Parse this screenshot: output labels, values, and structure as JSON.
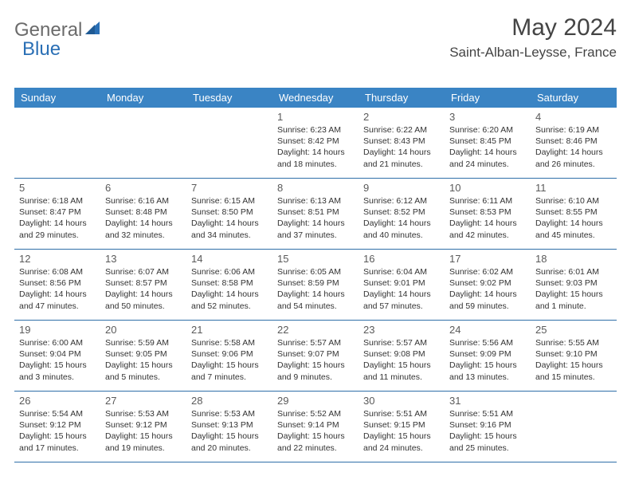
{
  "logo": {
    "text1": "General",
    "text2": "Blue"
  },
  "title": {
    "month": "May 2024",
    "location": "Saint-Alban-Leysse, France"
  },
  "colors": {
    "header_bg": "#3a84c4",
    "header_text": "#ffffff",
    "border": "#2f6fa8",
    "daynum": "#5a5a5a",
    "body_text": "#333333",
    "logo_blue": "#2a6fb5"
  },
  "day_names": [
    "Sunday",
    "Monday",
    "Tuesday",
    "Wednesday",
    "Thursday",
    "Friday",
    "Saturday"
  ],
  "weeks": [
    [
      {
        "n": "",
        "sr": "",
        "ss": "",
        "d1": "",
        "d2": ""
      },
      {
        "n": "",
        "sr": "",
        "ss": "",
        "d1": "",
        "d2": ""
      },
      {
        "n": "",
        "sr": "",
        "ss": "",
        "d1": "",
        "d2": ""
      },
      {
        "n": "1",
        "sr": "Sunrise: 6:23 AM",
        "ss": "Sunset: 8:42 PM",
        "d1": "Daylight: 14 hours",
        "d2": "and 18 minutes."
      },
      {
        "n": "2",
        "sr": "Sunrise: 6:22 AM",
        "ss": "Sunset: 8:43 PM",
        "d1": "Daylight: 14 hours",
        "d2": "and 21 minutes."
      },
      {
        "n": "3",
        "sr": "Sunrise: 6:20 AM",
        "ss": "Sunset: 8:45 PM",
        "d1": "Daylight: 14 hours",
        "d2": "and 24 minutes."
      },
      {
        "n": "4",
        "sr": "Sunrise: 6:19 AM",
        "ss": "Sunset: 8:46 PM",
        "d1": "Daylight: 14 hours",
        "d2": "and 26 minutes."
      }
    ],
    [
      {
        "n": "5",
        "sr": "Sunrise: 6:18 AM",
        "ss": "Sunset: 8:47 PM",
        "d1": "Daylight: 14 hours",
        "d2": "and 29 minutes."
      },
      {
        "n": "6",
        "sr": "Sunrise: 6:16 AM",
        "ss": "Sunset: 8:48 PM",
        "d1": "Daylight: 14 hours",
        "d2": "and 32 minutes."
      },
      {
        "n": "7",
        "sr": "Sunrise: 6:15 AM",
        "ss": "Sunset: 8:50 PM",
        "d1": "Daylight: 14 hours",
        "d2": "and 34 minutes."
      },
      {
        "n": "8",
        "sr": "Sunrise: 6:13 AM",
        "ss": "Sunset: 8:51 PM",
        "d1": "Daylight: 14 hours",
        "d2": "and 37 minutes."
      },
      {
        "n": "9",
        "sr": "Sunrise: 6:12 AM",
        "ss": "Sunset: 8:52 PM",
        "d1": "Daylight: 14 hours",
        "d2": "and 40 minutes."
      },
      {
        "n": "10",
        "sr": "Sunrise: 6:11 AM",
        "ss": "Sunset: 8:53 PM",
        "d1": "Daylight: 14 hours",
        "d2": "and 42 minutes."
      },
      {
        "n": "11",
        "sr": "Sunrise: 6:10 AM",
        "ss": "Sunset: 8:55 PM",
        "d1": "Daylight: 14 hours",
        "d2": "and 45 minutes."
      }
    ],
    [
      {
        "n": "12",
        "sr": "Sunrise: 6:08 AM",
        "ss": "Sunset: 8:56 PM",
        "d1": "Daylight: 14 hours",
        "d2": "and 47 minutes."
      },
      {
        "n": "13",
        "sr": "Sunrise: 6:07 AM",
        "ss": "Sunset: 8:57 PM",
        "d1": "Daylight: 14 hours",
        "d2": "and 50 minutes."
      },
      {
        "n": "14",
        "sr": "Sunrise: 6:06 AM",
        "ss": "Sunset: 8:58 PM",
        "d1": "Daylight: 14 hours",
        "d2": "and 52 minutes."
      },
      {
        "n": "15",
        "sr": "Sunrise: 6:05 AM",
        "ss": "Sunset: 8:59 PM",
        "d1": "Daylight: 14 hours",
        "d2": "and 54 minutes."
      },
      {
        "n": "16",
        "sr": "Sunrise: 6:04 AM",
        "ss": "Sunset: 9:01 PM",
        "d1": "Daylight: 14 hours",
        "d2": "and 57 minutes."
      },
      {
        "n": "17",
        "sr": "Sunrise: 6:02 AM",
        "ss": "Sunset: 9:02 PM",
        "d1": "Daylight: 14 hours",
        "d2": "and 59 minutes."
      },
      {
        "n": "18",
        "sr": "Sunrise: 6:01 AM",
        "ss": "Sunset: 9:03 PM",
        "d1": "Daylight: 15 hours",
        "d2": "and 1 minute."
      }
    ],
    [
      {
        "n": "19",
        "sr": "Sunrise: 6:00 AM",
        "ss": "Sunset: 9:04 PM",
        "d1": "Daylight: 15 hours",
        "d2": "and 3 minutes."
      },
      {
        "n": "20",
        "sr": "Sunrise: 5:59 AM",
        "ss": "Sunset: 9:05 PM",
        "d1": "Daylight: 15 hours",
        "d2": "and 5 minutes."
      },
      {
        "n": "21",
        "sr": "Sunrise: 5:58 AM",
        "ss": "Sunset: 9:06 PM",
        "d1": "Daylight: 15 hours",
        "d2": "and 7 minutes."
      },
      {
        "n": "22",
        "sr": "Sunrise: 5:57 AM",
        "ss": "Sunset: 9:07 PM",
        "d1": "Daylight: 15 hours",
        "d2": "and 9 minutes."
      },
      {
        "n": "23",
        "sr": "Sunrise: 5:57 AM",
        "ss": "Sunset: 9:08 PM",
        "d1": "Daylight: 15 hours",
        "d2": "and 11 minutes."
      },
      {
        "n": "24",
        "sr": "Sunrise: 5:56 AM",
        "ss": "Sunset: 9:09 PM",
        "d1": "Daylight: 15 hours",
        "d2": "and 13 minutes."
      },
      {
        "n": "25",
        "sr": "Sunrise: 5:55 AM",
        "ss": "Sunset: 9:10 PM",
        "d1": "Daylight: 15 hours",
        "d2": "and 15 minutes."
      }
    ],
    [
      {
        "n": "26",
        "sr": "Sunrise: 5:54 AM",
        "ss": "Sunset: 9:12 PM",
        "d1": "Daylight: 15 hours",
        "d2": "and 17 minutes."
      },
      {
        "n": "27",
        "sr": "Sunrise: 5:53 AM",
        "ss": "Sunset: 9:12 PM",
        "d1": "Daylight: 15 hours",
        "d2": "and 19 minutes."
      },
      {
        "n": "28",
        "sr": "Sunrise: 5:53 AM",
        "ss": "Sunset: 9:13 PM",
        "d1": "Daylight: 15 hours",
        "d2": "and 20 minutes."
      },
      {
        "n": "29",
        "sr": "Sunrise: 5:52 AM",
        "ss": "Sunset: 9:14 PM",
        "d1": "Daylight: 15 hours",
        "d2": "and 22 minutes."
      },
      {
        "n": "30",
        "sr": "Sunrise: 5:51 AM",
        "ss": "Sunset: 9:15 PM",
        "d1": "Daylight: 15 hours",
        "d2": "and 24 minutes."
      },
      {
        "n": "31",
        "sr": "Sunrise: 5:51 AM",
        "ss": "Sunset: 9:16 PM",
        "d1": "Daylight: 15 hours",
        "d2": "and 25 minutes."
      },
      {
        "n": "",
        "sr": "",
        "ss": "",
        "d1": "",
        "d2": ""
      }
    ]
  ]
}
